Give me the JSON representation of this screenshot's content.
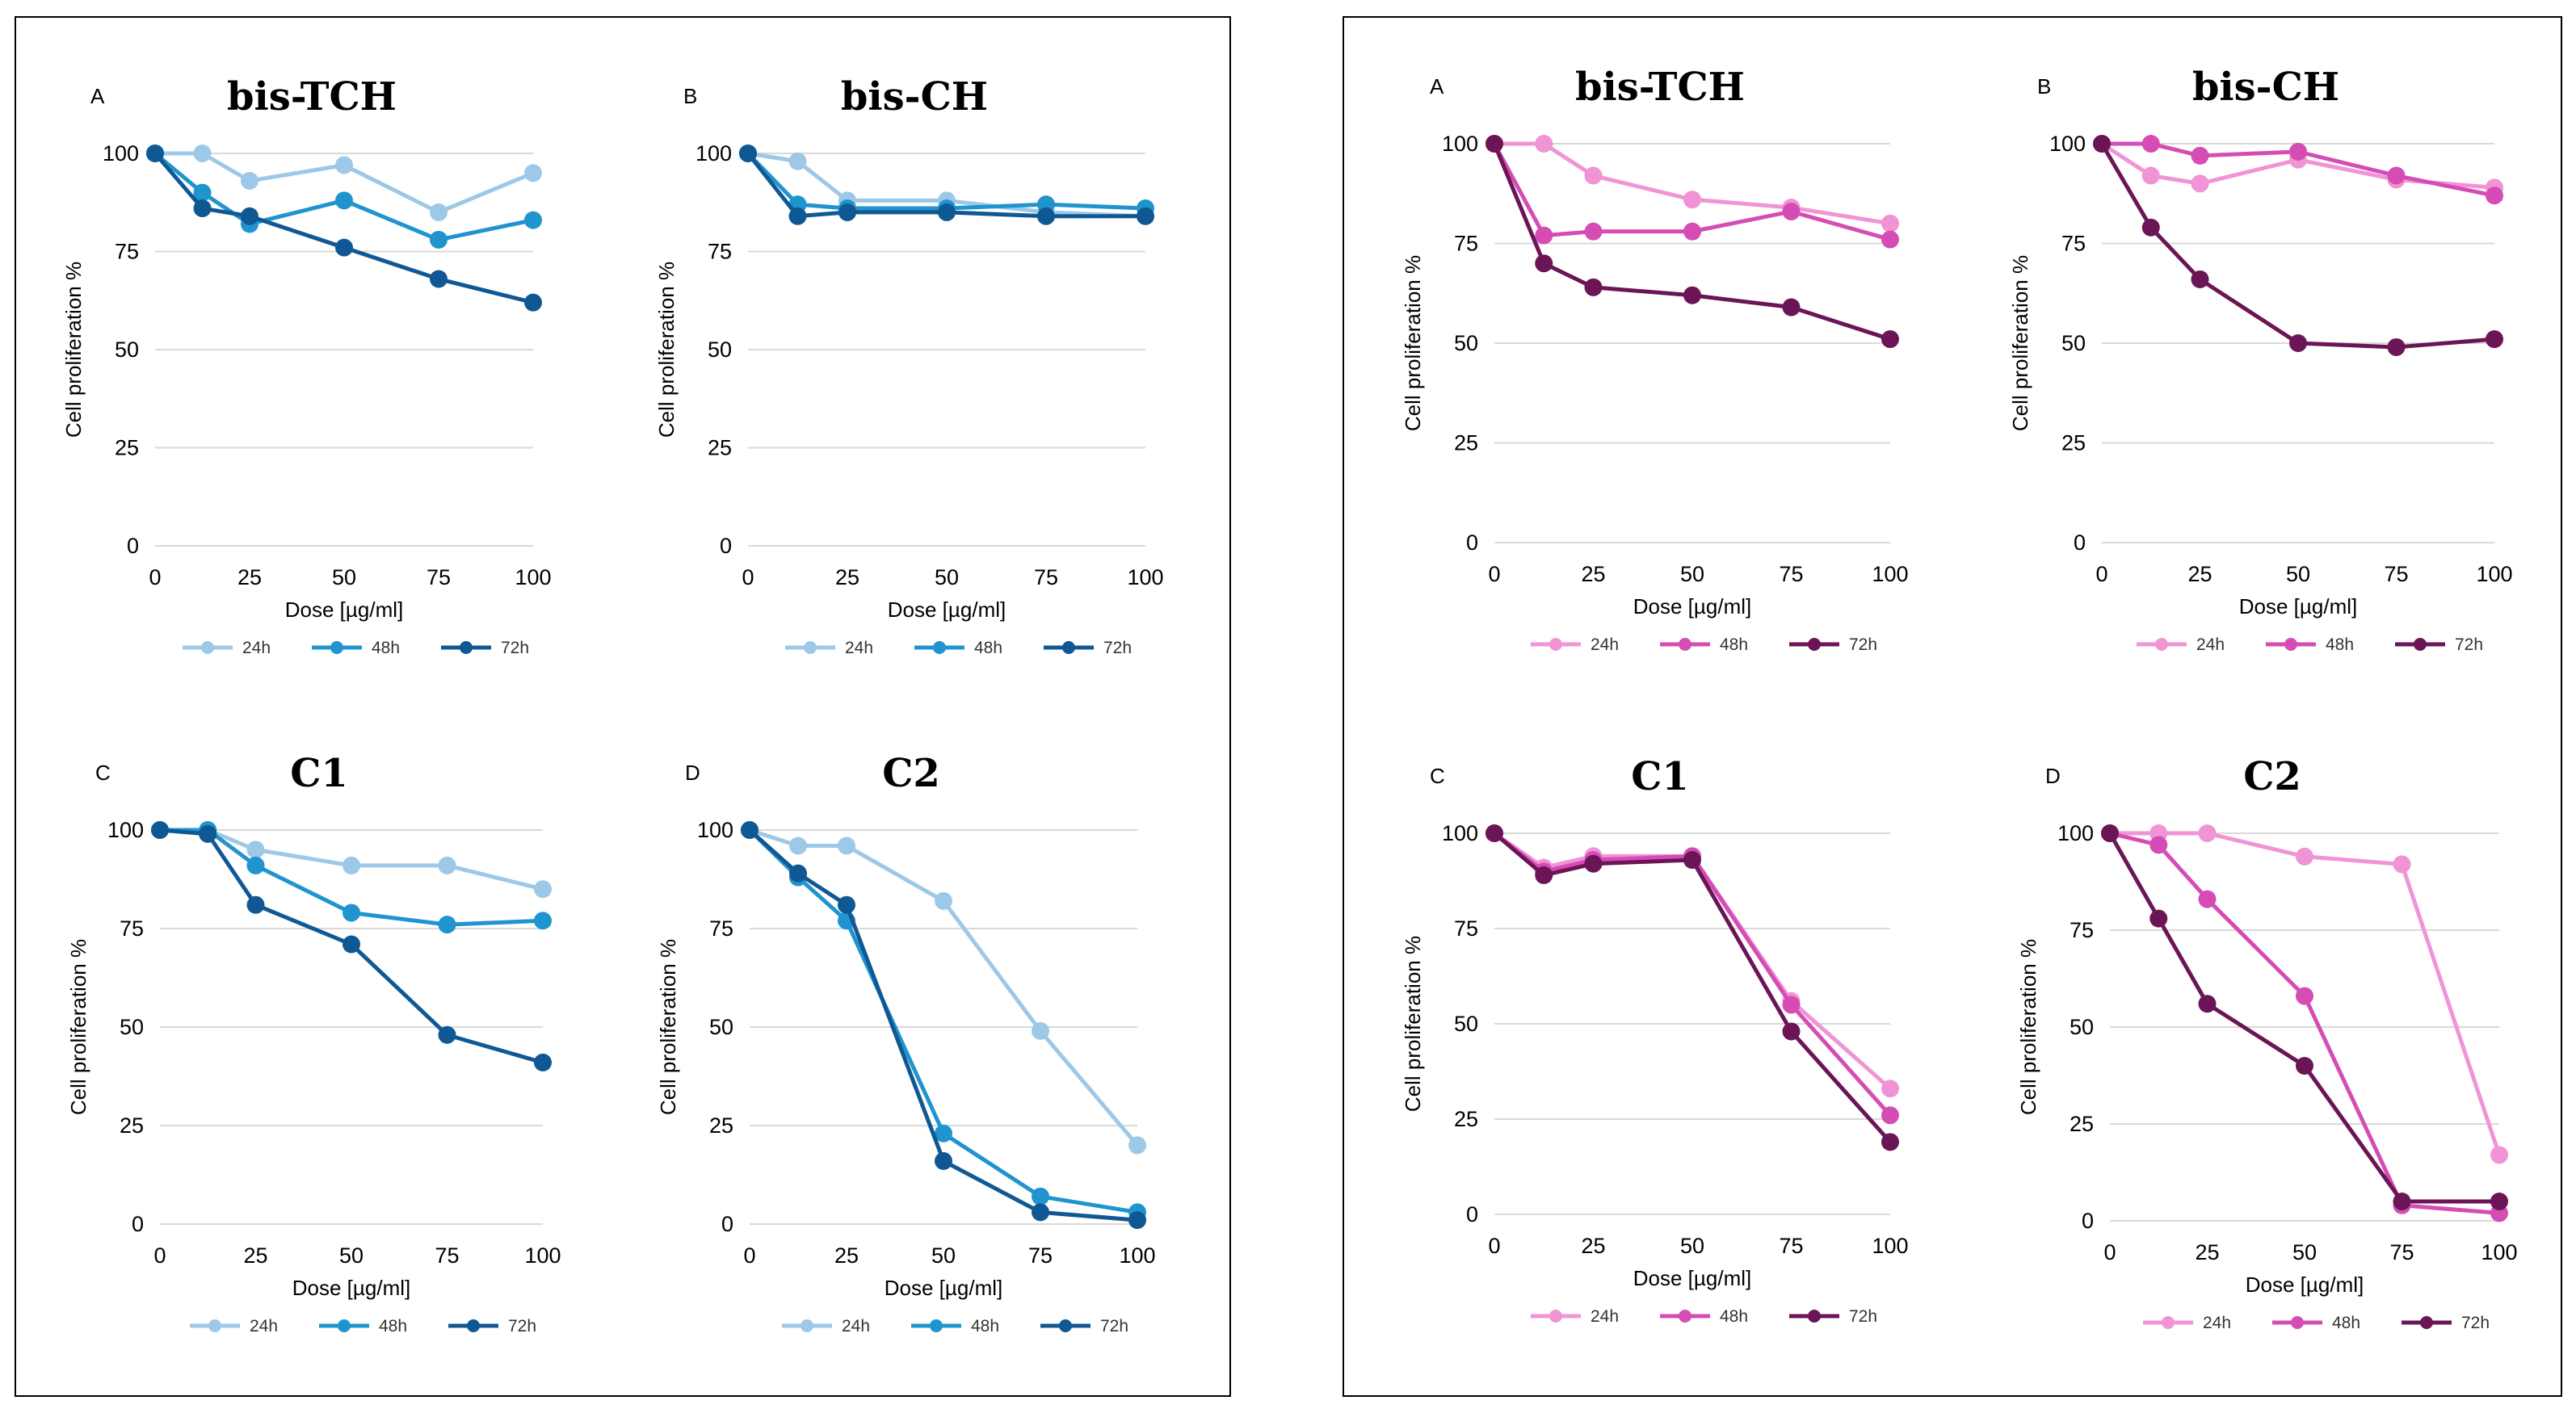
{
  "figure_groups": [
    {
      "name": "blue",
      "colors": {
        "24h": "#9dc8e8",
        "48h": "#1f94cf",
        "72h": "#105893"
      }
    },
    {
      "name": "pink",
      "colors": {
        "24h": "#f094d6",
        "48h": "#d54db4",
        "72h": "#6b1456"
      }
    }
  ],
  "chart_data": [
    {
      "type": "line",
      "group": "blue",
      "letter": "A",
      "title": "bis-TCH",
      "xlabel": "Dose [µg/ml]",
      "ylabel": "Cell proliferation %",
      "x": [
        0,
        12.5,
        25,
        50,
        75,
        100
      ],
      "xticks": [
        0,
        25,
        50,
        75,
        100
      ],
      "yticks": [
        0,
        25,
        50,
        75,
        100
      ],
      "ylim": [
        0,
        100
      ],
      "series": [
        {
          "name": "24h",
          "values": [
            100,
            100,
            93,
            97,
            85,
            95
          ]
        },
        {
          "name": "48h",
          "values": [
            100,
            90,
            82,
            88,
            78,
            83
          ]
        },
        {
          "name": "72h",
          "values": [
            100,
            86,
            84,
            76,
            68,
            62
          ]
        }
      ]
    },
    {
      "type": "line",
      "group": "blue",
      "letter": "B",
      "title": "bis-CH",
      "xlabel": "Dose [µg/ml]",
      "ylabel": "Cell proliferation %",
      "x": [
        0,
        12.5,
        25,
        50,
        75,
        100
      ],
      "xticks": [
        0,
        25,
        50,
        75,
        100
      ],
      "yticks": [
        0,
        25,
        50,
        75,
        100
      ],
      "ylim": [
        0,
        100
      ],
      "series": [
        {
          "name": "24h",
          "values": [
            100,
            98,
            88,
            88,
            85,
            84
          ]
        },
        {
          "name": "48h",
          "values": [
            100,
            87,
            86,
            86,
            87,
            86
          ]
        },
        {
          "name": "72h",
          "values": [
            100,
            84,
            85,
            85,
            84,
            84
          ]
        }
      ]
    },
    {
      "type": "line",
      "group": "blue",
      "letter": "C",
      "title": "C1",
      "xlabel": "Dose [µg/ml]",
      "ylabel": "Cell proliferation %",
      "x": [
        0,
        12.5,
        25,
        50,
        75,
        100
      ],
      "xticks": [
        0,
        25,
        50,
        75,
        100
      ],
      "yticks": [
        0,
        25,
        50,
        75,
        100
      ],
      "ylim": [
        0,
        100
      ],
      "series": [
        {
          "name": "24h",
          "values": [
            100,
            100,
            95,
            91,
            91,
            85
          ]
        },
        {
          "name": "48h",
          "values": [
            100,
            100,
            91,
            79,
            76,
            77
          ]
        },
        {
          "name": "72h",
          "values": [
            100,
            99,
            81,
            71,
            48,
            41
          ]
        }
      ]
    },
    {
      "type": "line",
      "group": "blue",
      "letter": "D",
      "title": "C2",
      "xlabel": "Dose [µg/ml]",
      "ylabel": "Cell proliferation %",
      "x": [
        0,
        12.5,
        25,
        50,
        75,
        100
      ],
      "xticks": [
        0,
        25,
        50,
        75,
        100
      ],
      "yticks": [
        0,
        25,
        50,
        75,
        100
      ],
      "ylim": [
        0,
        100
      ],
      "series": [
        {
          "name": "24h",
          "values": [
            100,
            96,
            96,
            82,
            49,
            20
          ]
        },
        {
          "name": "48h",
          "values": [
            100,
            88,
            77,
            23,
            7,
            3
          ]
        },
        {
          "name": "72h",
          "values": [
            100,
            89,
            81,
            16,
            3,
            1
          ]
        }
      ]
    },
    {
      "type": "line",
      "group": "pink",
      "letter": "A",
      "title": "bis-TCH",
      "xlabel": "Dose [µg/ml]",
      "ylabel": "Cell proliferation %",
      "x": [
        0,
        12.5,
        25,
        50,
        75,
        100
      ],
      "xticks": [
        0,
        25,
        50,
        75,
        100
      ],
      "yticks": [
        0,
        25,
        50,
        75,
        100
      ],
      "ylim": [
        0,
        100
      ],
      "series": [
        {
          "name": "24h",
          "values": [
            100,
            100,
            92,
            86,
            84,
            80
          ]
        },
        {
          "name": "48h",
          "values": [
            100,
            77,
            78,
            78,
            83,
            76
          ]
        },
        {
          "name": "72h",
          "values": [
            100,
            70,
            64,
            62,
            59,
            51
          ]
        }
      ]
    },
    {
      "type": "line",
      "group": "pink",
      "letter": "B",
      "title": "bis-CH",
      "xlabel": "Dose [µg/ml]",
      "ylabel": "Cell proliferation %",
      "x": [
        0,
        12.5,
        25,
        50,
        75,
        100
      ],
      "xticks": [
        0,
        25,
        50,
        75,
        100
      ],
      "yticks": [
        0,
        25,
        50,
        75,
        100
      ],
      "ylim": [
        0,
        100
      ],
      "series": [
        {
          "name": "24h",
          "values": [
            100,
            92,
            90,
            96,
            91,
            89
          ]
        },
        {
          "name": "48h",
          "values": [
            100,
            100,
            97,
            98,
            92,
            87
          ]
        },
        {
          "name": "72h",
          "values": [
            100,
            79,
            66,
            50,
            49,
            51
          ]
        }
      ]
    },
    {
      "type": "line",
      "group": "pink",
      "letter": "C",
      "title": "C1",
      "xlabel": "Dose [µg/ml]",
      "ylabel": "Cell proliferation %",
      "x": [
        0,
        12.5,
        25,
        50,
        75,
        100
      ],
      "xticks": [
        0,
        25,
        50,
        75,
        100
      ],
      "yticks": [
        0,
        25,
        50,
        75,
        100
      ],
      "ylim": [
        0,
        100
      ],
      "series": [
        {
          "name": "24h",
          "values": [
            100,
            91,
            94,
            94,
            56,
            33
          ]
        },
        {
          "name": "48h",
          "values": [
            100,
            90,
            93,
            94,
            55,
            26
          ]
        },
        {
          "name": "72h",
          "values": [
            100,
            89,
            92,
            93,
            48,
            19
          ]
        }
      ]
    },
    {
      "type": "line",
      "group": "pink",
      "letter": "D",
      "title": "C2",
      "xlabel": "Dose [µg/ml]",
      "ylabel": "Cell proliferation %",
      "x": [
        0,
        12.5,
        25,
        50,
        75,
        100
      ],
      "xticks": [
        0,
        25,
        50,
        75,
        100
      ],
      "yticks": [
        0,
        25,
        50,
        75,
        100
      ],
      "ylim": [
        0,
        100
      ],
      "series": [
        {
          "name": "24h",
          "values": [
            100,
            100,
            100,
            94,
            92,
            17
          ]
        },
        {
          "name": "48h",
          "values": [
            100,
            97,
            83,
            58,
            4,
            2
          ]
        },
        {
          "name": "72h",
          "values": [
            100,
            78,
            56,
            40,
            5,
            5
          ]
        }
      ]
    }
  ]
}
